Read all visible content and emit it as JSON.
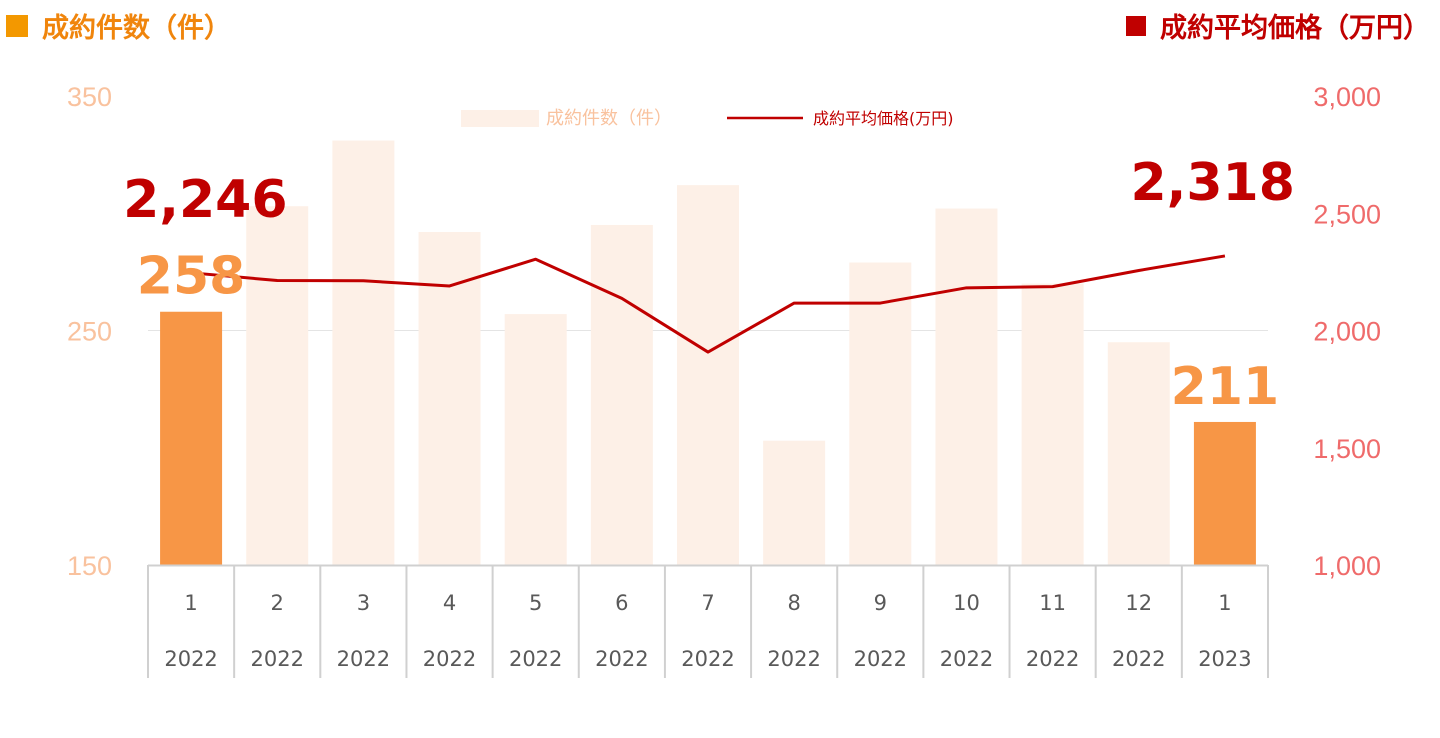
{
  "header": {
    "left_title": "成約件数（件）",
    "right_title": "成約平均価格（万円）"
  },
  "colors": {
    "bar_highlight": "#f79646",
    "bar_faint": "#fdf0e7",
    "line": "#c00000",
    "left_axis": "#f9c29e",
    "right_axis": "#ef6b6b",
    "highlight_label": "#f79646",
    "line_label": "#c00000"
  },
  "chart_data": {
    "type": "bar+line",
    "categories": [
      {
        "month": "1",
        "year": "2022"
      },
      {
        "month": "2",
        "year": "2022"
      },
      {
        "month": "3",
        "year": "2022"
      },
      {
        "month": "4",
        "year": "2022"
      },
      {
        "month": "5",
        "year": "2022"
      },
      {
        "month": "6",
        "year": "2022"
      },
      {
        "month": "7",
        "year": "2022"
      },
      {
        "month": "8",
        "year": "2022"
      },
      {
        "month": "9",
        "year": "2022"
      },
      {
        "month": "10",
        "year": "2022"
      },
      {
        "month": "11",
        "year": "2022"
      },
      {
        "month": "12",
        "year": "2022"
      },
      {
        "month": "1",
        "year": "2023"
      }
    ],
    "series": [
      {
        "name": "成約件数（件）",
        "type": "bar",
        "axis": "left",
        "values": [
          258,
          303,
          331,
          292,
          257,
          295,
          312,
          203,
          279,
          302,
          270,
          245,
          211
        ],
        "highlight": [
          true,
          false,
          false,
          false,
          false,
          false,
          false,
          false,
          false,
          false,
          false,
          false,
          true
        ]
      },
      {
        "name": "成約平均価格(万円)",
        "type": "line",
        "axis": "right",
        "values": [
          2246,
          2213,
          2212,
          2190,
          2304,
          2137,
          1908,
          2117,
          2117,
          2182,
          2187,
          2256,
          2318
        ]
      }
    ],
    "left_axis": {
      "ylim": [
        150,
        350
      ],
      "ticks": [
        "150",
        "250",
        "350"
      ]
    },
    "right_axis": {
      "ylim": [
        1000,
        3000
      ],
      "ticks": [
        "1,000",
        "1,500",
        "2,000",
        "2,500",
        "3,000"
      ]
    },
    "data_labels": [
      {
        "series": 0,
        "index": 0,
        "text": "258"
      },
      {
        "series": 0,
        "index": 12,
        "text": "211"
      },
      {
        "series": 1,
        "index": 0,
        "text": "2,246"
      },
      {
        "series": 1,
        "index": 12,
        "text": "2,318"
      }
    ],
    "legend": {
      "placement": "top-center"
    },
    "gridlines": true
  }
}
